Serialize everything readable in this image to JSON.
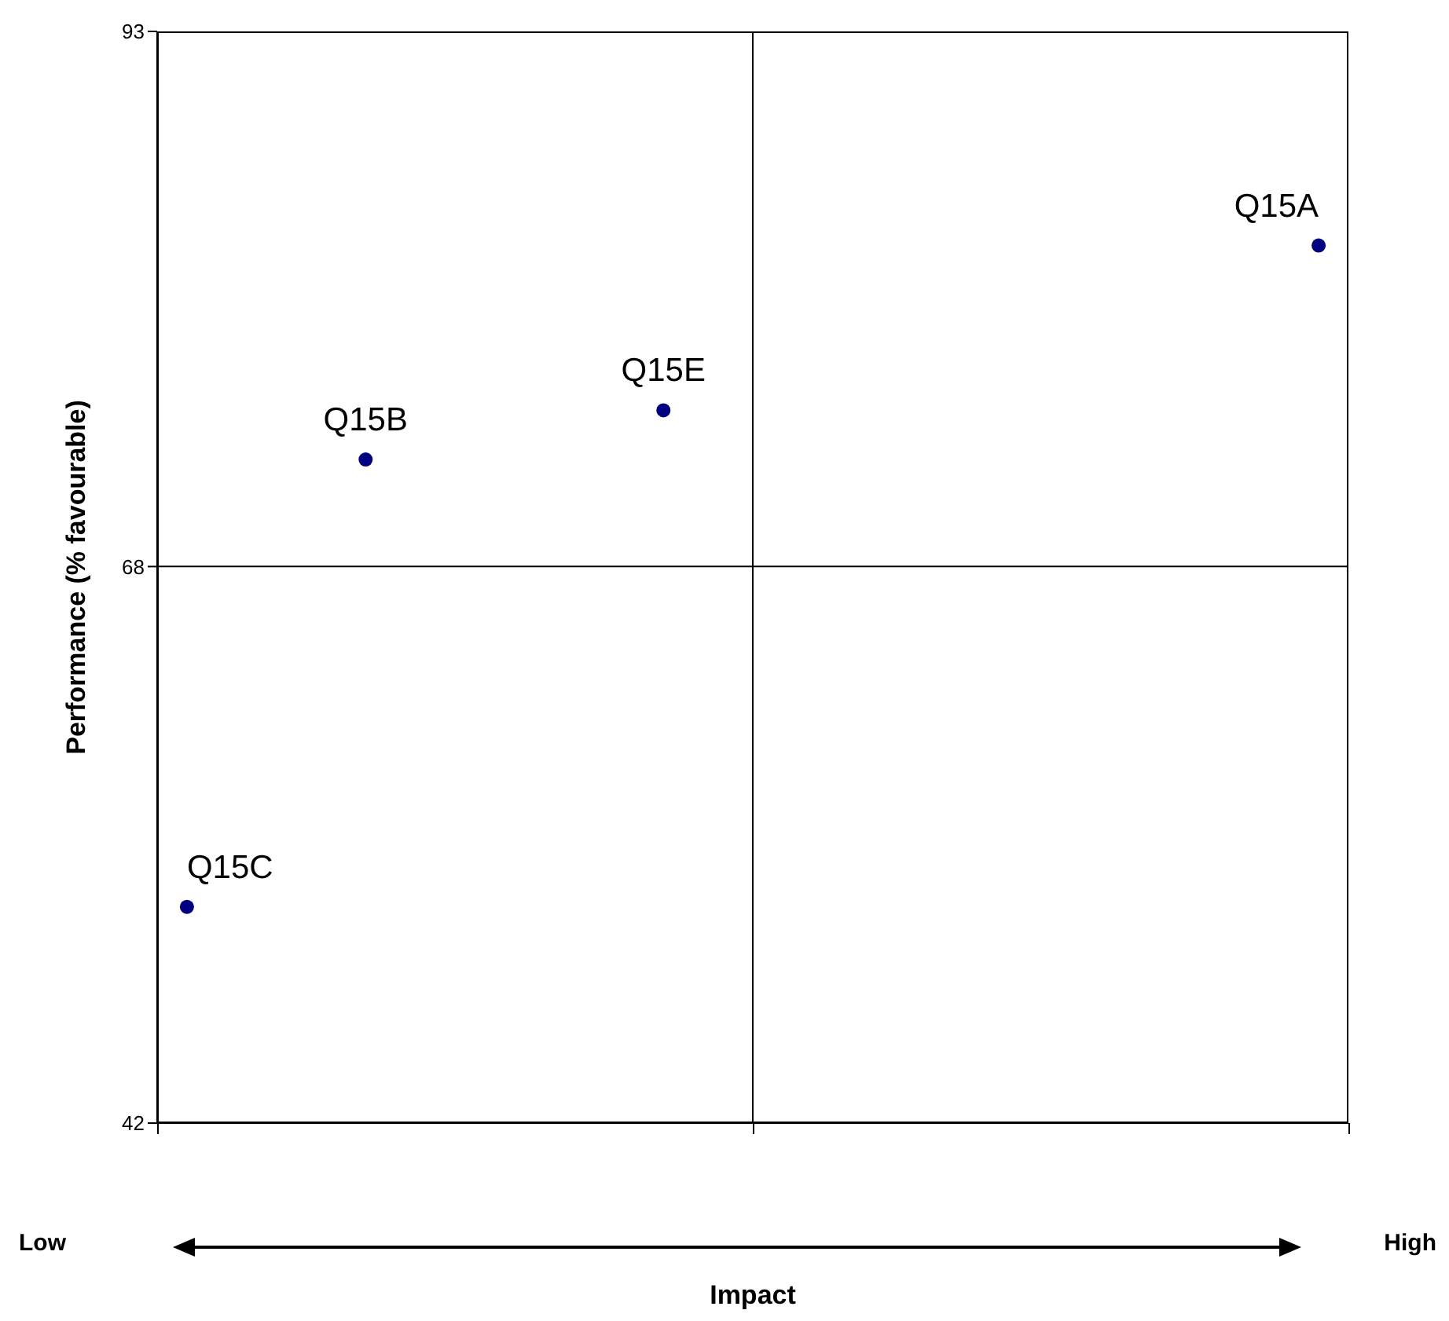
{
  "chart_data": {
    "type": "scatter",
    "ylabel": "Performance (% favourable)",
    "categories": [
      null,
      null,
      null,
      null,
      null,
      null,
      null,
      null,
      null,
      null,
      null,
      null,
      null,
      null,
      null,
      null,
      null,
      null,
      null,
      null
    ],
    "series": [
      {
        "color": "#000080",
        "values": [
          52.1,
          null,
          null,
          73,
          null,
          null,
          null,
          null,
          75.3,
          null,
          null,
          null,
          null,
          null,
          null,
          null,
          null,
          null,
          null,
          83
        ],
        "value_labels": [
          "Q15C",
          null,
          null,
          "Q15B",
          null,
          null,
          null,
          null,
          "Q15E",
          null,
          null,
          null,
          null,
          null,
          null,
          null,
          null,
          null,
          null,
          "Q15A"
        ]
      }
    ],
    "ylim": [
      42,
      93
    ],
    "yticks": [
      42,
      68,
      93
    ],
    "ref_lines": [
      {
        "axis": "y",
        "value": 68,
        "color": "#000000"
      }
    ],
    "annotations": [
      "Low",
      "High",
      "Impact"
    ],
    "marker": "circle"
  }
}
